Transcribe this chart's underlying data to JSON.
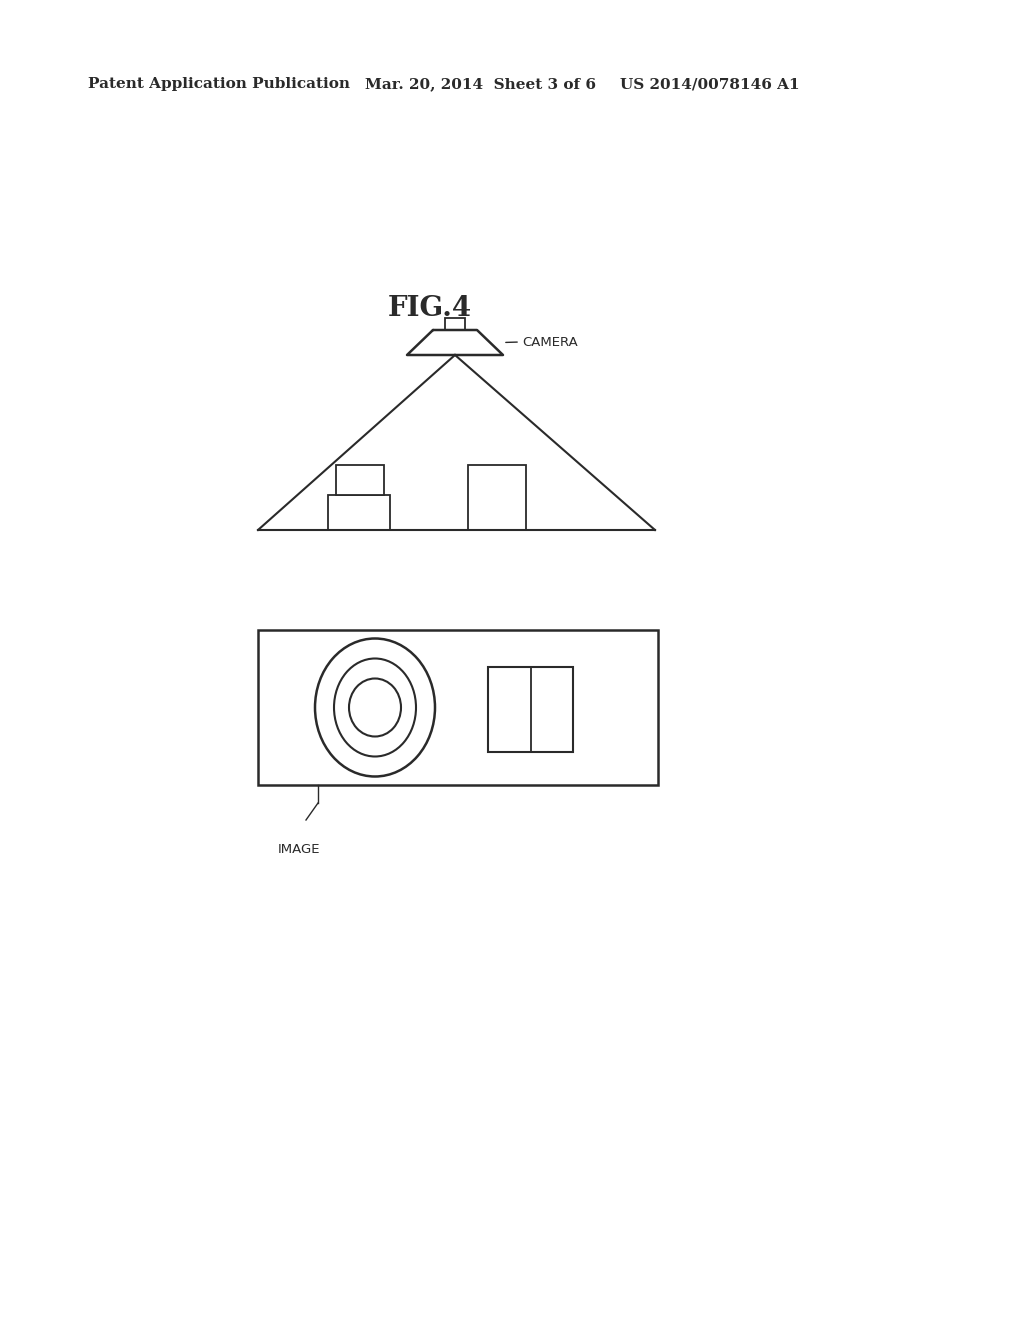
{
  "bg_color": "#ffffff",
  "header_left": "Patent Application Publication",
  "header_mid": "Mar. 20, 2014  Sheet 3 of 6",
  "header_right": "US 2014/0078146 A1",
  "fig_label": "FIG.4",
  "camera_label": "CAMERA",
  "image_label": "IMAGE",
  "line_color": "#2a2a2a",
  "line_width": 1.5,
  "header_fontsize": 11,
  "fig_label_fontsize": 20,
  "annotation_fontsize": 9.5
}
